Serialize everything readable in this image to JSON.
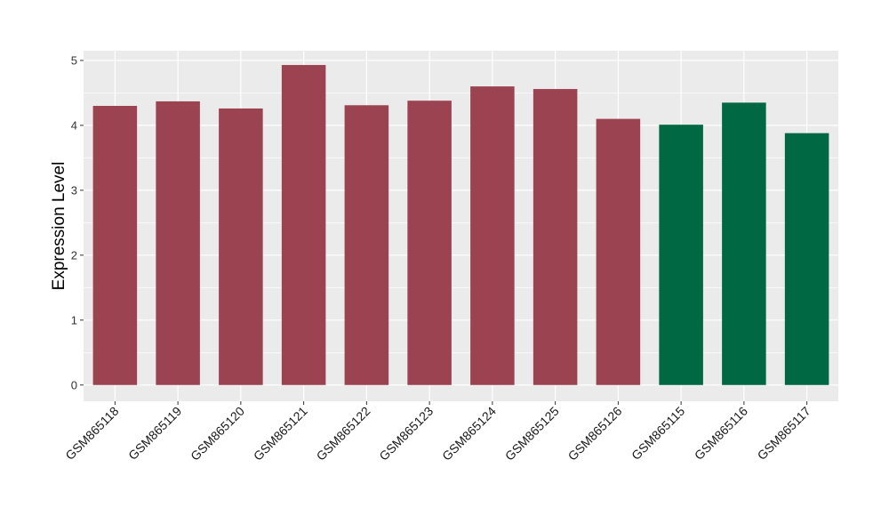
{
  "chart_data": {
    "type": "bar",
    "title": "",
    "xlabel": "",
    "ylabel": "Expression Level",
    "ylim": [
      -0.25,
      5.15
    ],
    "yticks": [
      0,
      1,
      2,
      3,
      4,
      5
    ],
    "grid": true,
    "legend": "none",
    "categories": [
      "GSM865118",
      "GSM865119",
      "GSM865120",
      "GSM865121",
      "GSM865122",
      "GSM865123",
      "GSM865124",
      "GSM865125",
      "GSM865126",
      "GSM865115",
      "GSM865116",
      "GSM865117"
    ],
    "values": [
      4.3,
      4.37,
      4.26,
      4.93,
      4.31,
      4.38,
      4.6,
      4.56,
      4.1,
      4.01,
      4.35,
      3.88
    ],
    "bar_colors": [
      "#9b4350",
      "#9b4350",
      "#9b4350",
      "#9b4350",
      "#9b4350",
      "#9b4350",
      "#9b4350",
      "#9b4350",
      "#9b4350",
      "#006843",
      "#006843",
      "#006843"
    ],
    "panel_background": "#ebebeb",
    "grid_color": "#ffffff"
  }
}
